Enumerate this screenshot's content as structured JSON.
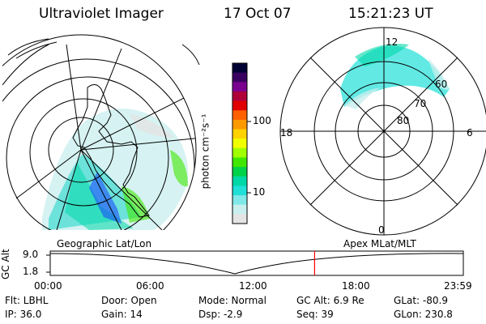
{
  "header": {
    "instrument": "Ultraviolet Imager",
    "date": "17 Oct 07",
    "time": "15:21:23 UT"
  },
  "left_panel": {
    "caption": "Geographic Lat/Lon"
  },
  "right_panel": {
    "caption": "Apex MLat/MLT",
    "mlt_labels": [
      "12",
      "18",
      "6",
      "0"
    ],
    "mlat_labels": [
      "60",
      "70",
      "80"
    ]
  },
  "colorbar": {
    "label": "photon cm⁻²s⁻¹",
    "ticks": [
      "100",
      "10"
    ],
    "colors": [
      "#000033",
      "#3a0060",
      "#7a0090",
      "#b0003a",
      "#e00000",
      "#ff6000",
      "#ff9900",
      "#ffd200",
      "#f0ff00",
      "#a0ff00",
      "#40e800",
      "#00d24a",
      "#00d8a8",
      "#20e0d8",
      "#80e8e8",
      "#c8eeee",
      "#e4e4e4"
    ]
  },
  "timeline": {
    "ylabel": "GC Alt",
    "yticks": [
      "9.0",
      "1.8"
    ],
    "xticks": [
      "00:00",
      "06:00",
      "12:00",
      "18:00",
      "23:59"
    ],
    "current_time_fraction": 0.64,
    "marker_color": "#ff0000"
  },
  "info": {
    "flt": "Flt: LBHL",
    "ip": "IP: 36.0",
    "door": "Door: Open",
    "gain": "Gain: 14",
    "mode": "Mode: Normal",
    "dsp": "Dsp:    -2.9",
    "gc_alt": "GC Alt: 6.9 Re",
    "seq": "Seq: 39",
    "glat": "GLat: -80.9",
    "glon": "GLon: 230.8"
  }
}
